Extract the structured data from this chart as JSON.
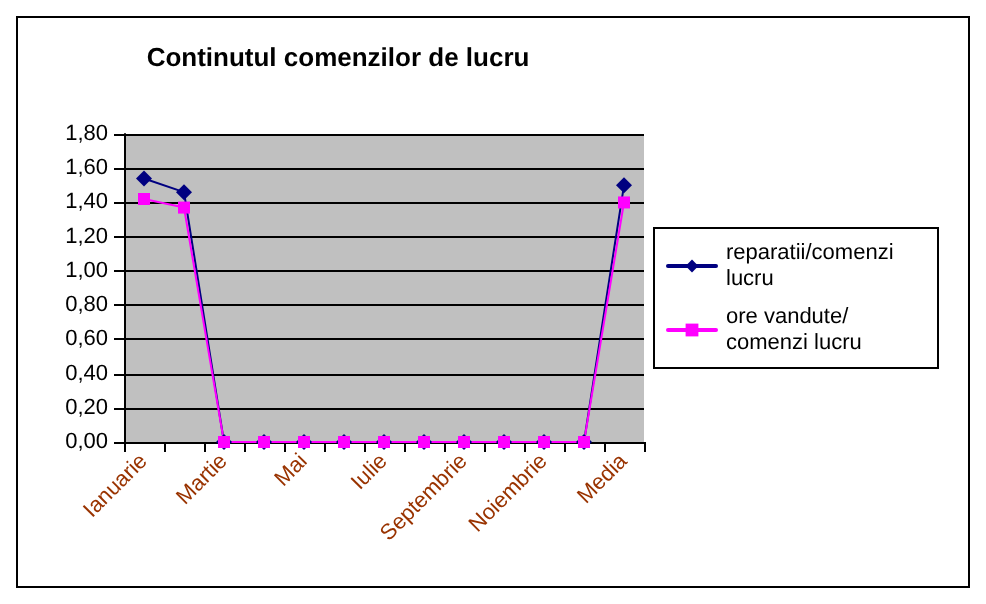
{
  "chart_data": {
    "type": "line",
    "title": "Continutul comenzilor de lucru",
    "categories": [
      "Ianuarie",
      null,
      "Martie",
      null,
      "Mai",
      null,
      "Iulie",
      null,
      "Septembrie",
      null,
      "Noiembrie",
      null,
      "Media"
    ],
    "series": [
      {
        "name": "reparatii/comenzi lucru",
        "color": "#000080",
        "marker": "diamond",
        "values": [
          1.54,
          1.46,
          0,
          0,
          0,
          0,
          0,
          0,
          0,
          0,
          0,
          0,
          1.5
        ]
      },
      {
        "name": "ore vandute/comenzi lucru",
        "color": "#ff00ff",
        "marker": "square",
        "values": [
          1.42,
          1.37,
          0,
          0,
          0,
          0,
          0,
          0,
          0,
          0,
          0,
          0,
          1.4
        ]
      }
    ],
    "ylim": [
      0,
      1.8
    ],
    "yticks": [
      {
        "value": 0,
        "label": "0,00"
      },
      {
        "value": 0.2,
        "label": "0,20"
      },
      {
        "value": 0.4,
        "label": "0,40"
      },
      {
        "value": 0.6,
        "label": "0,60"
      },
      {
        "value": 0.8,
        "label": "0,80"
      },
      {
        "value": 1,
        "label": "1,00"
      },
      {
        "value": 1.2,
        "label": "1,20"
      },
      {
        "value": 1.4,
        "label": "1,40"
      },
      {
        "value": 1.6,
        "label": "1,60"
      },
      {
        "value": 1.8,
        "label": "1,80"
      }
    ],
    "grid": "y",
    "legend": "right",
    "line_style": "solid"
  }
}
